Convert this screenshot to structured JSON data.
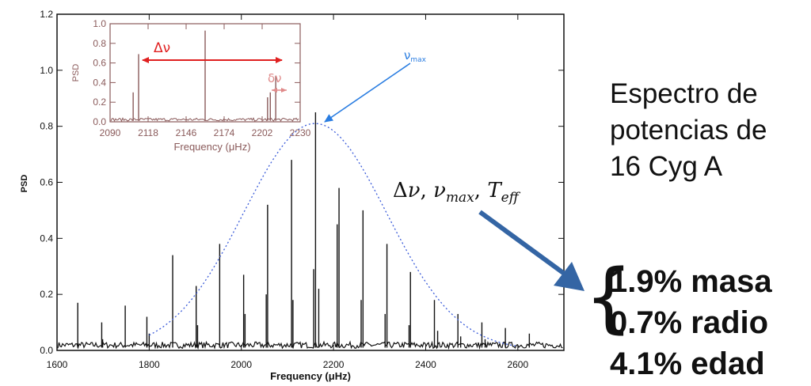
{
  "chart_data": [
    {
      "type": "line",
      "xlabel": "Frequency (μHz)",
      "ylabel": "PSD",
      "xlim": [
        1600,
        2700
      ],
      "ylim": [
        0,
        1.2
      ],
      "x_ticks": [
        "1600",
        "1800",
        "2000",
        "2200",
        "2400",
        "2600"
      ],
      "y_ticks": [
        "0.0",
        "0.2",
        "0.4",
        "0.6",
        "0.8",
        "1.0",
        "1.2"
      ],
      "peaks": [
        {
          "x": 1645,
          "y": 0.17
        },
        {
          "x": 1697,
          "y": 0.1
        },
        {
          "x": 1748,
          "y": 0.16
        },
        {
          "x": 1795,
          "y": 0.12
        },
        {
          "x": 1851,
          "y": 0.34
        },
        {
          "x": 1902,
          "y": 0.23
        },
        {
          "x": 1953,
          "y": 0.38
        },
        {
          "x": 2005,
          "y": 0.27
        },
        {
          "x": 2057,
          "y": 0.52
        },
        {
          "x": 2109,
          "y": 0.68
        },
        {
          "x": 2161,
          "y": 0.85
        },
        {
          "x": 2212,
          "y": 0.58
        },
        {
          "x": 2264,
          "y": 0.5
        },
        {
          "x": 2316,
          "y": 0.38
        },
        {
          "x": 2367,
          "y": 0.28
        },
        {
          "x": 2419,
          "y": 0.18
        },
        {
          "x": 2470,
          "y": 0.13
        },
        {
          "x": 2522,
          "y": 0.1
        },
        {
          "x": 2573,
          "y": 0.08
        },
        {
          "x": 2625,
          "y": 0.06
        }
      ],
      "secondary_peaks": [
        {
          "x": 1699,
          "y": 0.04
        },
        {
          "x": 1800,
          "y": 0.06
        },
        {
          "x": 1905,
          "y": 0.09
        },
        {
          "x": 2008,
          "y": 0.13
        },
        {
          "x": 2054,
          "y": 0.2
        },
        {
          "x": 2112,
          "y": 0.18
        },
        {
          "x": 2157,
          "y": 0.29
        },
        {
          "x": 2168,
          "y": 0.22
        },
        {
          "x": 2208,
          "y": 0.45
        },
        {
          "x": 2260,
          "y": 0.18
        },
        {
          "x": 2312,
          "y": 0.13
        },
        {
          "x": 2364,
          "y": 0.09
        },
        {
          "x": 2426,
          "y": 0.07
        },
        {
          "x": 2476,
          "y": 0.05
        },
        {
          "x": 2529,
          "y": 0.04
        }
      ],
      "gaussian_envelope": {
        "center": 2160,
        "amplitude": 0.81,
        "sigma": 155,
        "style": "dotted",
        "color": "#3a5bd9"
      },
      "annotation": {
        "label": "ν",
        "subscript": "max",
        "color": "#2a7de1"
      }
    },
    {
      "type": "line",
      "xlabel": "Frequency (μHz)",
      "ylabel": "PSD",
      "xlim": [
        2090,
        2230
      ],
      "ylim": [
        0,
        1.0
      ],
      "x_ticks": [
        "2090",
        "2118",
        "2146",
        "2174",
        "2202",
        "2230"
      ],
      "y_ticks": [
        "0.0",
        "0.2",
        "0.4",
        "0.6",
        "0.8",
        "1.0"
      ],
      "peaks": [
        {
          "x": 2107,
          "y": 0.3
        },
        {
          "x": 2111,
          "y": 0.69
        },
        {
          "x": 2160,
          "y": 0.93
        },
        {
          "x": 2206,
          "y": 0.25
        },
        {
          "x": 2208,
          "y": 0.3
        },
        {
          "x": 2212,
          "y": 0.47
        }
      ],
      "annotations": [
        {
          "label": "Δν",
          "color": "#e02020"
        },
        {
          "label": "δν",
          "color": "#e08a8a"
        }
      ]
    }
  ],
  "text": {
    "title_lines": [
      "Espectro de",
      "potencias de",
      "16 Cyg A"
    ],
    "formula_delta": "Δ",
    "formula_nu1": "ν",
    "formula_comma1": ", ",
    "formula_nu2": "ν",
    "formula_sub_max": "max",
    "formula_comma2": ", ",
    "formula_T": "T",
    "formula_sub_eff": "eff",
    "brace": "{",
    "results": [
      "1.9% masa",
      "0.7% radio",
      "4.1% edad"
    ]
  },
  "colors": {
    "spectrum": "#111111",
    "inset_spectrum": "#8a5a5a",
    "delta_nu": "#e02020",
    "small_delta_nu": "#e08a8a",
    "nu_max": "#2a7de1",
    "gaussian": "#3a5bd9",
    "big_arrow": "#3465a4"
  }
}
